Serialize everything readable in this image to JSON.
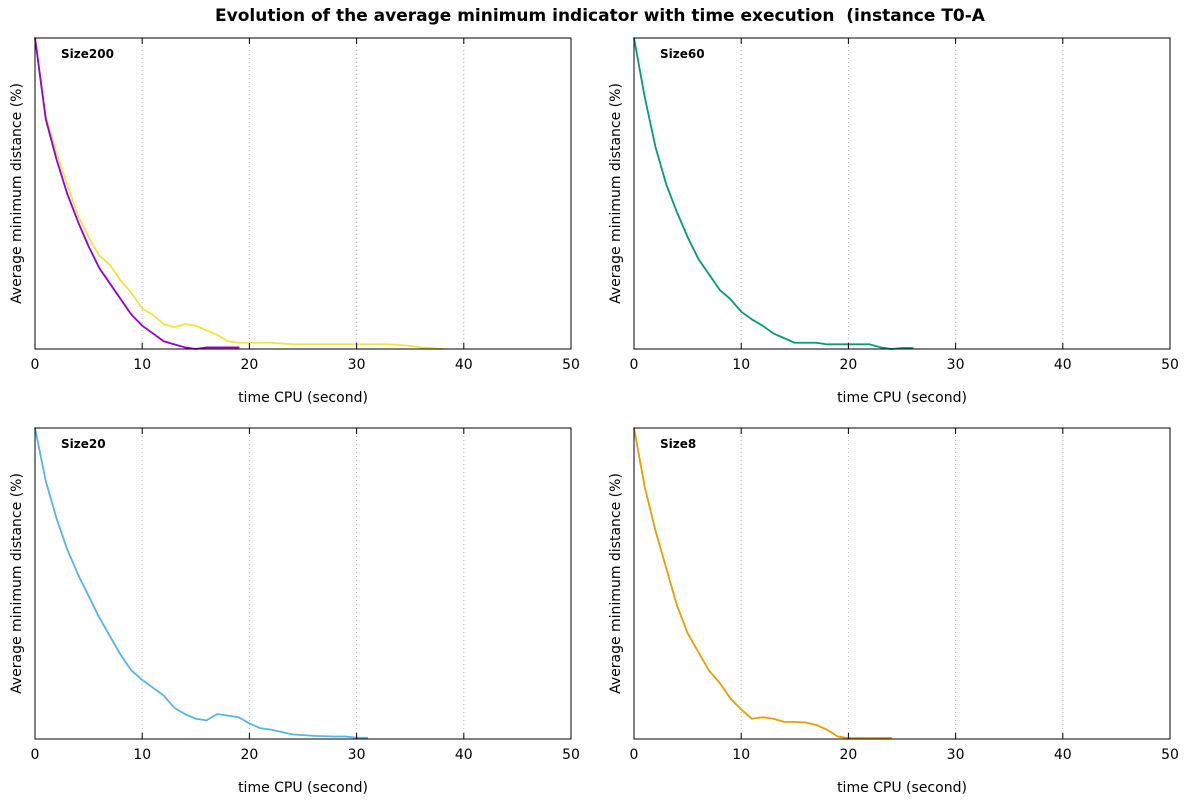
{
  "figure": {
    "title": "Evolution of the average minimum indicator with time execution  (instance T0-A"
  },
  "chart_data": [
    {
      "type": "line",
      "panel_label": "Size200",
      "xlabel": "time CPU (second)",
      "ylabel": "Average minimum distance (%)",
      "xlim": [
        0,
        50
      ],
      "ylim": [
        0,
        100
      ],
      "xticks": [
        0,
        10,
        20,
        30,
        40,
        50
      ],
      "grid": "x-dotted",
      "series": [
        {
          "color": "#f0e442",
          "x": [
            0,
            1,
            2,
            3,
            4,
            5,
            6,
            7,
            8,
            9,
            10,
            11,
            12,
            13,
            14,
            15,
            16,
            17,
            18,
            19,
            20,
            22,
            24,
            26,
            28,
            30,
            33,
            35,
            36,
            38
          ],
          "y": [
            100,
            75,
            63,
            53,
            43,
            36,
            30,
            27,
            22,
            18,
            13,
            11,
            8,
            7,
            8,
            7.5,
            6,
            4.5,
            2.5,
            2,
            2,
            2,
            1.5,
            1.5,
            1.5,
            1.5,
            1.5,
            1,
            0.5,
            0
          ]
        },
        {
          "color": "#9400d3",
          "x": [
            0,
            1,
            2,
            3,
            4,
            5,
            6,
            7,
            8,
            9,
            10,
            11,
            12,
            13,
            14,
            15,
            16,
            17,
            18,
            19
          ],
          "y": [
            100,
            74,
            61,
            50,
            41,
            33,
            26,
            21,
            16,
            11,
            7.5,
            5,
            2.5,
            1.5,
            0.5,
            0,
            0.5,
            0.5,
            0.5,
            0.5
          ]
        }
      ]
    },
    {
      "type": "line",
      "panel_label": "Size60",
      "xlabel": "time CPU (second)",
      "ylabel": "Average minimum distance (%)",
      "xlim": [
        0,
        50
      ],
      "ylim": [
        0,
        100
      ],
      "xticks": [
        0,
        10,
        20,
        30,
        40,
        50
      ],
      "grid": "x-dotted",
      "series": [
        {
          "color": "#009e73",
          "x": [
            0,
            1,
            2,
            3,
            4,
            5,
            6,
            7,
            8,
            9,
            10,
            11,
            12,
            13,
            14,
            15,
            16,
            17,
            18,
            19,
            20,
            21,
            22,
            23,
            24,
            25,
            26
          ],
          "y": [
            100,
            81,
            65,
            53,
            44,
            36,
            29,
            24,
            19,
            16,
            12,
            9.5,
            7.5,
            5,
            3.5,
            2,
            2,
            2,
            1.5,
            1.5,
            1.5,
            1.5,
            1.5,
            0.5,
            0,
            0.3,
            0.3
          ]
        }
      ]
    },
    {
      "type": "line",
      "panel_label": "Size20",
      "xlabel": "time CPU (second)",
      "ylabel": "Average minimum distance (%)",
      "xlim": [
        0,
        50
      ],
      "ylim": [
        0,
        100
      ],
      "xticks": [
        0,
        10,
        20,
        30,
        40,
        50
      ],
      "grid": "x-dotted",
      "series": [
        {
          "color": "#56b4e9",
          "x": [
            0,
            1,
            2,
            3,
            4,
            5,
            6,
            7,
            8,
            9,
            10,
            11,
            12,
            13,
            14,
            15,
            16,
            17,
            18,
            19,
            20,
            21,
            22,
            24,
            26,
            28,
            29,
            30,
            31
          ],
          "y": [
            100,
            83,
            71,
            61,
            53,
            46,
            39,
            33,
            27,
            22,
            19,
            16.5,
            14,
            10,
            8,
            6.5,
            6,
            8,
            7.5,
            7,
            5,
            3.5,
            3,
            1.5,
            1,
            0.8,
            0.8,
            0.4,
            0.4
          ]
        }
      ]
    },
    {
      "type": "line",
      "panel_label": "Size8",
      "xlabel": "time CPU (second)",
      "ylabel": "Average minimum distance (%)",
      "xlim": [
        0,
        50
      ],
      "ylim": [
        0,
        100
      ],
      "xticks": [
        0,
        10,
        20,
        30,
        40,
        50
      ],
      "grid": "x-dotted",
      "series": [
        {
          "color": "#e69f00",
          "x": [
            0,
            1,
            2,
            3,
            4,
            5,
            6,
            7,
            8,
            9,
            10,
            11,
            12,
            13,
            14,
            15,
            16,
            17,
            18,
            19,
            20,
            21,
            22,
            23,
            24
          ],
          "y": [
            100,
            81,
            67,
            55,
            43,
            34,
            28,
            22,
            18,
            13,
            9.5,
            6.5,
            7,
            6.5,
            5.5,
            5.5,
            5.3,
            4.5,
            3,
            0.8,
            0.3,
            0.3,
            0.3,
            0.3,
            0.3
          ]
        }
      ]
    }
  ]
}
